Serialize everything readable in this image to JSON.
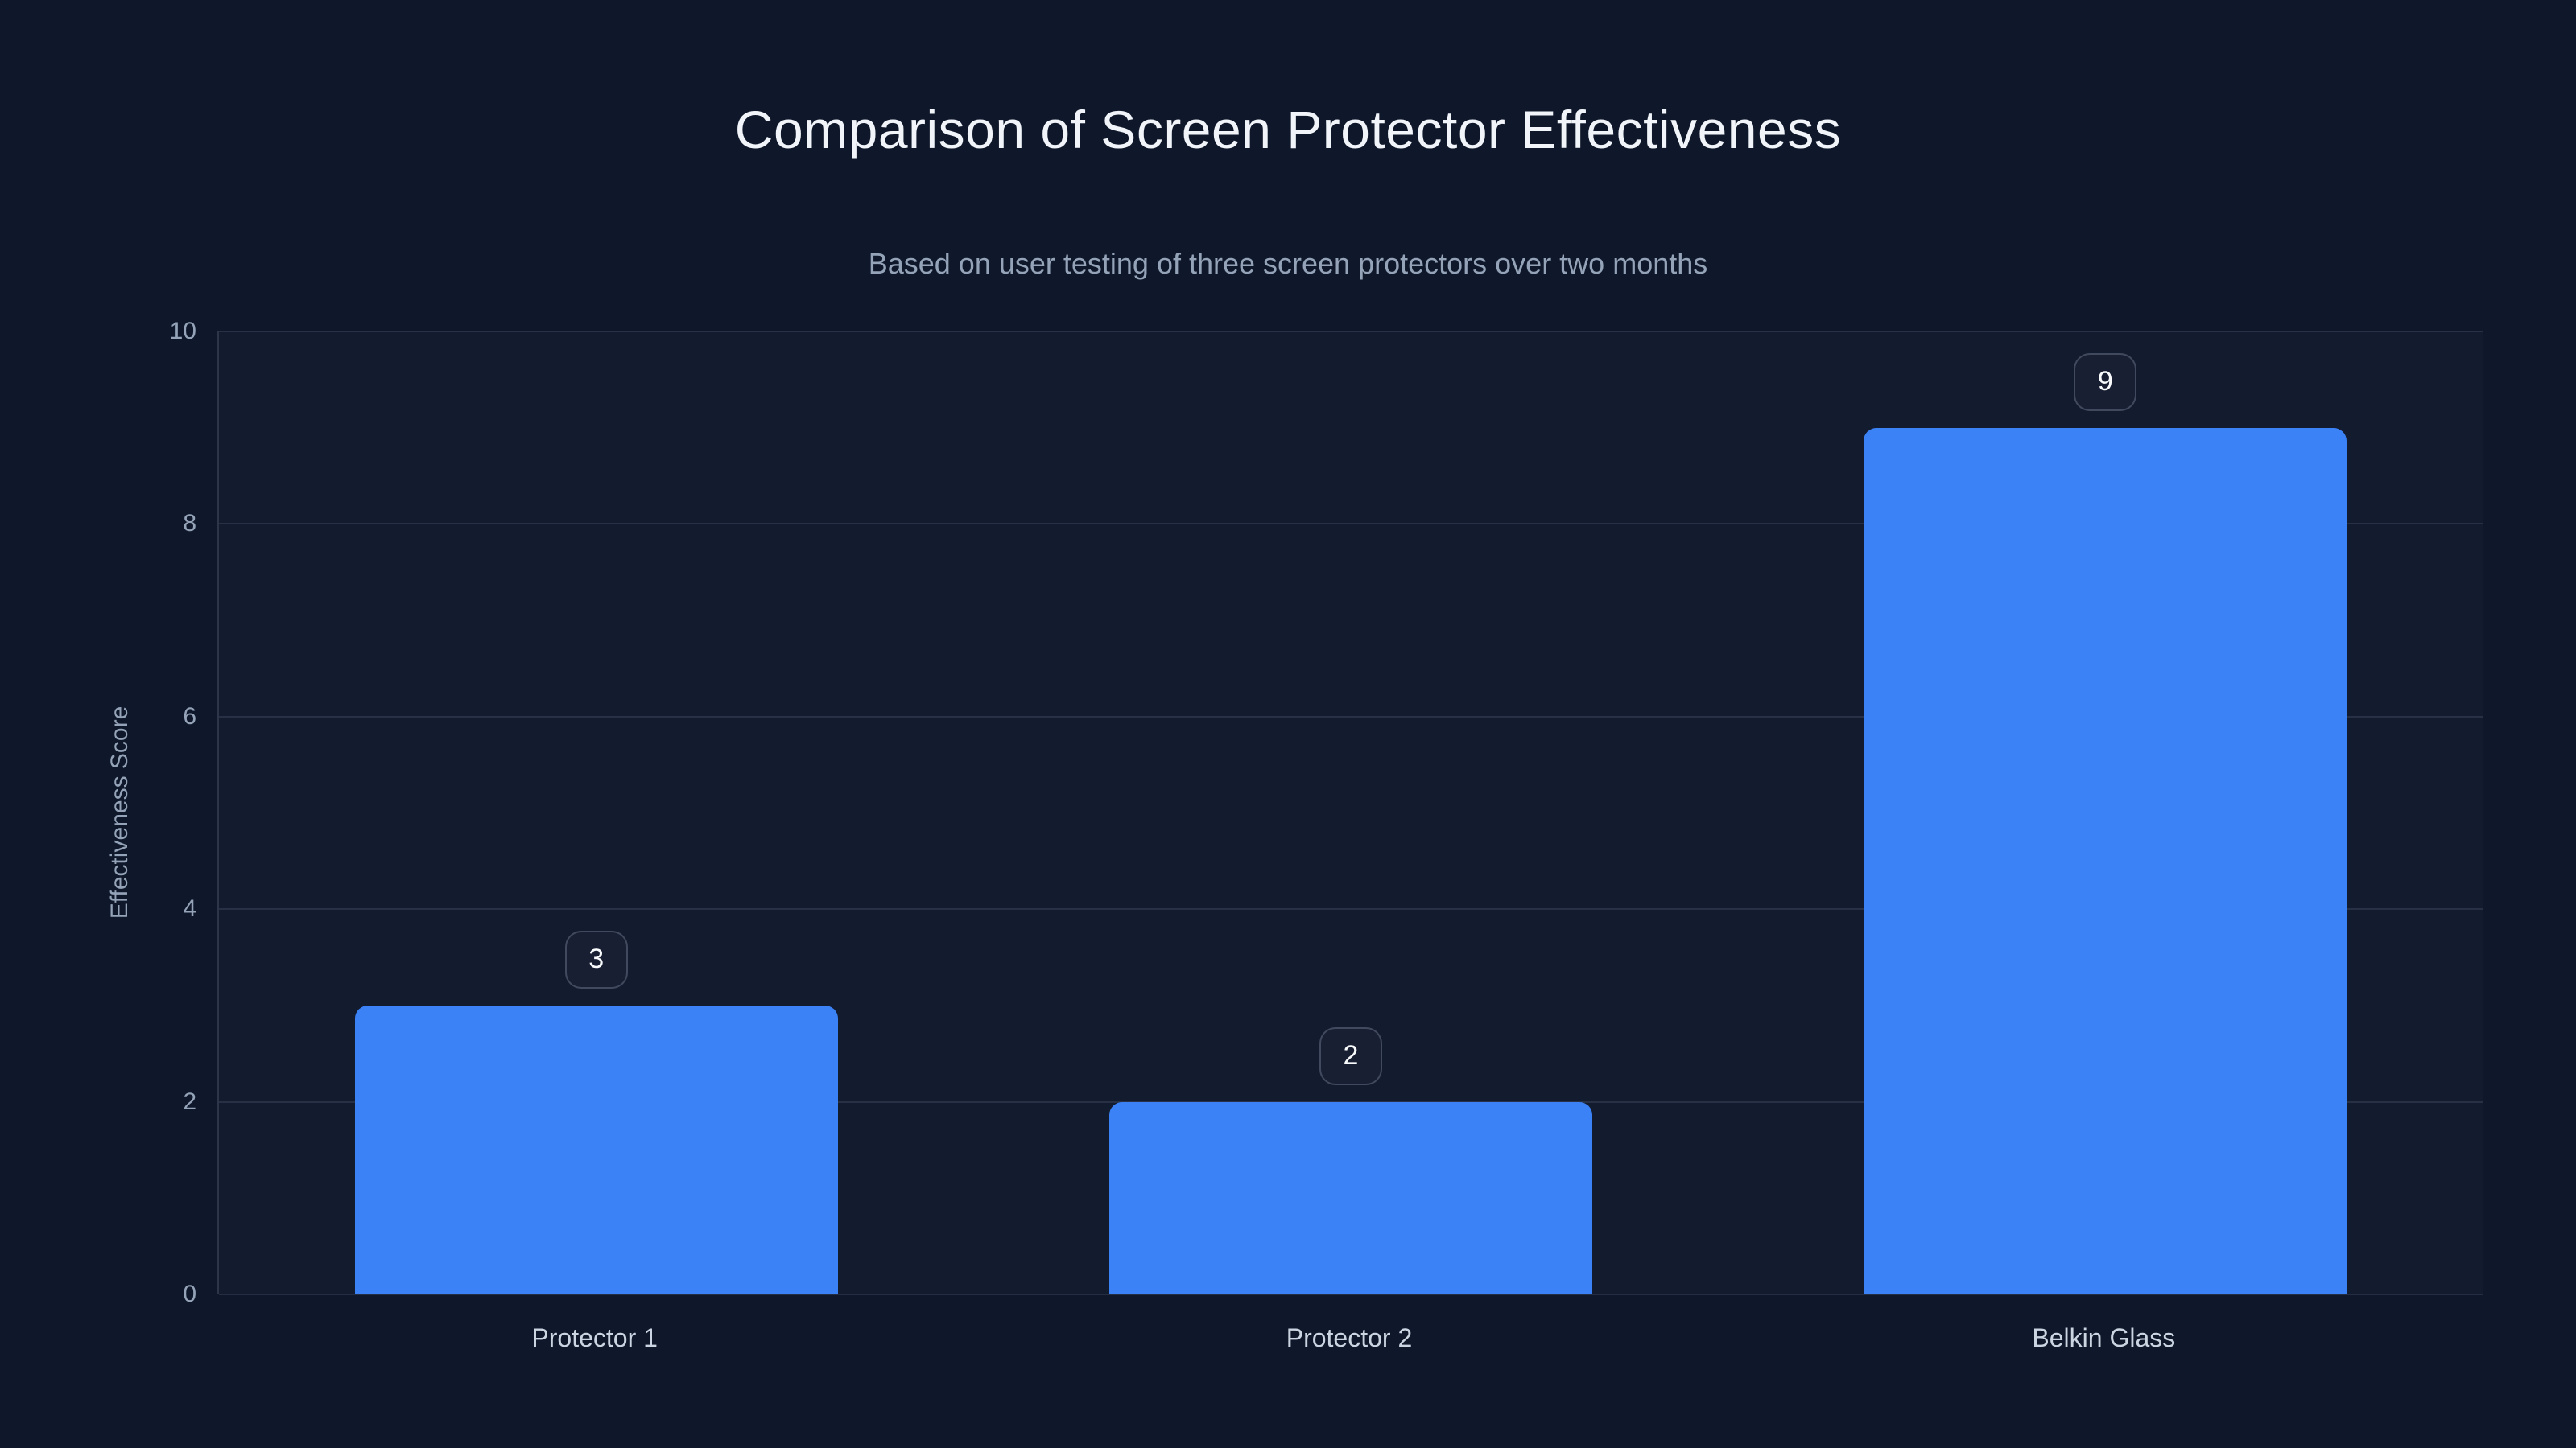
{
  "page": {
    "title": "Comparison of Screen Protector Effectiveness",
    "subtitle": "Based on user testing of three screen protectors over two months"
  },
  "colors": {
    "background": "#0f172a",
    "bar_fill": "#3b82f6",
    "title_text": "#f1f5f9",
    "subtitle_text": "#94a3b8",
    "axis_text": "#94a3b8",
    "category_text": "#cbd5e1",
    "gridline": "rgba(148,163,184,0.16)",
    "badge_border": "rgba(148,163,184,0.32)",
    "badge_text": "#f8fafc"
  },
  "chart_data": {
    "type": "bar",
    "title": "Comparison of Screen Protector Effectiveness",
    "subtitle": "Based on user testing of three screen protectors over two months",
    "categories": [
      "Protector 1",
      "Protector 2",
      "Belkin Glass"
    ],
    "values": [
      3,
      2,
      9
    ],
    "bar_value_badges": [
      "3",
      "2",
      "9"
    ],
    "xlabel": "",
    "ylabel": "Effectiveness Score",
    "ylim": [
      0,
      10
    ],
    "yticks": [
      0,
      2,
      4,
      6,
      8,
      10
    ],
    "grid": true,
    "legend": false
  }
}
